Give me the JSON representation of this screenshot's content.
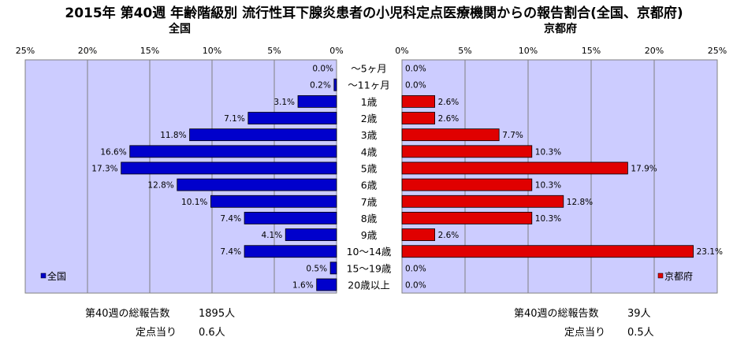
{
  "title": "2015年 第40週 年齢階級別 流行性耳下腺炎患者の小児科定点医療機関からの報告割合(全国、京都府)",
  "colors": {
    "nation": "#0000CC",
    "kyoto": "#E00000",
    "plot_bg": "#CCCCFF"
  },
  "chart_data": [
    {
      "type": "bar",
      "orientation": "horizontal",
      "direction": "right-to-left",
      "title": "全国",
      "legend": "全国",
      "legend_position": "bottom-left",
      "xlim": [
        0,
        25
      ],
      "ticks": [
        "25%",
        "20%",
        "15%",
        "10%",
        "5%",
        "0%"
      ],
      "tick_values": [
        25,
        20,
        15,
        10,
        5,
        0
      ],
      "categories": [
        "～5ヶ月",
        "～11ヶ月",
        "1歳",
        "2歳",
        "3歳",
        "4歳",
        "5歳",
        "6歳",
        "7歳",
        "8歳",
        "9歳",
        "10～14歳",
        "15～19歳",
        "20歳以上"
      ],
      "values": [
        0.0,
        0.2,
        3.1,
        7.1,
        11.8,
        16.6,
        17.3,
        12.8,
        10.1,
        7.4,
        4.1,
        7.4,
        0.5,
        1.6
      ],
      "labels": [
        "0.0%",
        "0.2%",
        "3.1%",
        "7.1%",
        "11.8%",
        "16.6%",
        "17.3%",
        "12.8%",
        "10.1%",
        "7.4%",
        "4.1%",
        "7.4%",
        "0.5%",
        "1.6%"
      ],
      "grid": true
    },
    {
      "type": "bar",
      "orientation": "horizontal",
      "direction": "left-to-right",
      "title": "京都府",
      "legend": "京都府",
      "legend_position": "bottom-right",
      "xlim": [
        0,
        25
      ],
      "ticks": [
        "0%",
        "5%",
        "10%",
        "15%",
        "20%",
        "25%"
      ],
      "tick_values": [
        0,
        5,
        10,
        15,
        20,
        25
      ],
      "categories": [
        "～5ヶ月",
        "～11ヶ月",
        "1歳",
        "2歳",
        "3歳",
        "4歳",
        "5歳",
        "6歳",
        "7歳",
        "8歳",
        "9歳",
        "10～14歳",
        "15～19歳",
        "20歳以上"
      ],
      "values": [
        0.0,
        0.0,
        2.6,
        2.6,
        7.7,
        10.3,
        17.9,
        10.3,
        12.8,
        10.3,
        2.6,
        23.1,
        0.0,
        0.0
      ],
      "labels": [
        "0.0%",
        "0.0%",
        "2.6%",
        "2.6%",
        "7.7%",
        "10.3%",
        "17.9%",
        "10.3%",
        "12.8%",
        "10.3%",
        "2.6%",
        "23.1%",
        "0.0%",
        "0.0%"
      ],
      "grid": true
    }
  ],
  "footer": {
    "nation_total_label": "第40週の総報告数",
    "nation_total_value": "1895人",
    "nation_per_label": "定点当り",
    "nation_per_value": "0.6人",
    "kyoto_total_label": "第40週の総報告数",
    "kyoto_total_value": "39人",
    "kyoto_per_label": "定点当り",
    "kyoto_per_value": "0.5人"
  }
}
